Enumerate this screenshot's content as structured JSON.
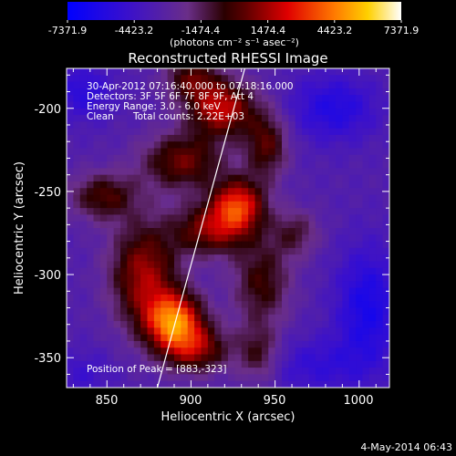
{
  "chart_data": {
    "type": "heatmap",
    "title": "Reconstructed RHESSI Image",
    "xlabel": "Heliocentric X (arcsec)",
    "ylabel": "Heliocentric Y (arcsec)",
    "xlim": [
      826,
      1018
    ],
    "ylim": [
      -368,
      -176
    ],
    "xticks": [
      850,
      900,
      950,
      1000
    ],
    "yticks": [
      -200,
      -250,
      -300,
      -350
    ],
    "colorbar": {
      "min": -7371.9,
      "max": 7371.9,
      "ticks": [
        "-7371.9",
        "-4423.2",
        "-1474.4",
        "1474.4",
        "4423.2",
        "7371.9"
      ],
      "units_label": "(photons cm⁻² s⁻¹ asec⁻²)"
    },
    "annotations": {
      "time_range": "30-Apr-2012 07:16:40.000 to 07:18:16.000",
      "detectors": "Detectors: 3F 5F 6F 7F 8F 9F, Att 4",
      "energy_range": "Energy Range: 3.0 - 6.0 keV",
      "clean": "Clean",
      "total_counts": "Total counts: 2.22E+03",
      "peak": "Position of Peak = [883,-323]"
    },
    "peak": [
      883,
      -323
    ],
    "limb_line": [
      [
        880,
        -368
      ],
      [
        932,
        -176
      ]
    ],
    "sources": [
      {
        "x": 890,
        "y": -328,
        "amp": 7300,
        "sx": 12,
        "sy": 12
      },
      {
        "x": 872,
        "y": -300,
        "amp": 4800,
        "sx": 14,
        "sy": 22
      },
      {
        "x": 903,
        "y": -345,
        "amp": 4200,
        "sx": 14,
        "sy": 10
      },
      {
        "x": 928,
        "y": -258,
        "amp": 6000,
        "sx": 11,
        "sy": 11
      },
      {
        "x": 912,
        "y": -273,
        "amp": 4300,
        "sx": 16,
        "sy": 11
      },
      {
        "x": 895,
        "y": -232,
        "amp": 4000,
        "sx": 17,
        "sy": 12
      },
      {
        "x": 918,
        "y": -200,
        "amp": 5400,
        "sx": 14,
        "sy": 12
      },
      {
        "x": 900,
        "y": -182,
        "amp": 3300,
        "sx": 11,
        "sy": 9
      },
      {
        "x": 945,
        "y": -222,
        "amp": 3600,
        "sx": 9,
        "sy": 14
      },
      {
        "x": 848,
        "y": -253,
        "amp": 3400,
        "sx": 14,
        "sy": 10
      },
      {
        "x": 942,
        "y": -305,
        "amp": 3200,
        "sx": 12,
        "sy": 18
      },
      {
        "x": 940,
        "y": -348,
        "amp": 2700,
        "sx": 9,
        "sy": 12
      },
      {
        "x": 962,
        "y": -275,
        "amp": 2300,
        "sx": 10,
        "sy": 10
      },
      {
        "x": 985,
        "y": -200,
        "amp": -2400,
        "sx": 18,
        "sy": 14
      },
      {
        "x": 1005,
        "y": -320,
        "amp": -2800,
        "sx": 13,
        "sy": 25
      },
      {
        "x": 836,
        "y": -190,
        "amp": -2000,
        "sx": 12,
        "sy": 12
      },
      {
        "x": 836,
        "y": -360,
        "amp": -1200,
        "sx": 12,
        "sy": 10
      },
      {
        "x": 975,
        "y": -355,
        "amp": -1600,
        "sx": 22,
        "sy": 12
      }
    ]
  },
  "footer": {
    "date": "4-May-2014 06:43"
  }
}
